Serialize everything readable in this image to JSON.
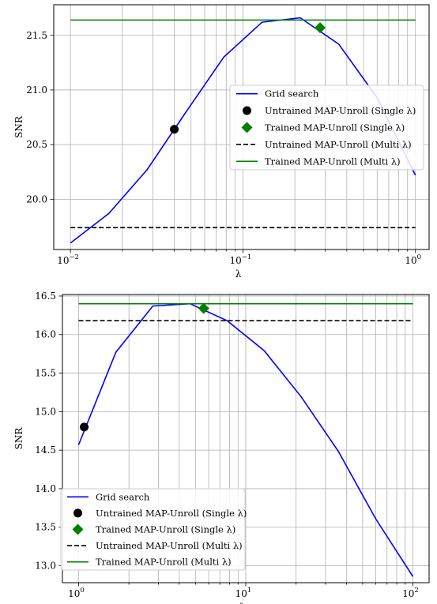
{
  "chart_data": [
    {
      "type": "line",
      "xscale": "log",
      "xlim": [
        0.008,
        1.2
      ],
      "ylim": [
        19.54,
        21.78
      ],
      "xlabel": "λ",
      "ylabel": "SNR",
      "grid": true,
      "legend_position": "center-right",
      "xticks": [
        {
          "value": 0.01,
          "base": "10",
          "exp": "−2"
        },
        {
          "value": 0.1,
          "base": "10",
          "exp": "−1"
        },
        {
          "value": 1,
          "base": "10",
          "exp": "0"
        }
      ],
      "yticks": [
        {
          "value": 20.0,
          "label": "20.0"
        },
        {
          "value": 20.5,
          "label": "20.5"
        },
        {
          "value": 21.0,
          "label": "21.0"
        },
        {
          "value": 21.5,
          "label": "21.5"
        }
      ],
      "grid_x": [
        0.02,
        0.03,
        0.04,
        0.05,
        0.06,
        0.07,
        0.08,
        0.09,
        0.2,
        0.3,
        0.4,
        0.5,
        0.6,
        0.7,
        0.8,
        0.9
      ],
      "series": [
        {
          "name": "Grid search",
          "kind": "line",
          "color": "#0000ff",
          "x": [
            0.01,
            0.0167,
            0.0278,
            0.0464,
            0.0774,
            0.129,
            0.215,
            0.359,
            0.599,
            1.0
          ],
          "y": [
            19.6,
            19.87,
            20.27,
            20.79,
            21.3,
            21.62,
            21.66,
            21.42,
            20.93,
            20.22
          ]
        },
        {
          "name": "Untrained MAP-Unroll (Single λ)",
          "kind": "marker",
          "marker": "circle",
          "color": "#000000",
          "x": [
            0.04
          ],
          "y": [
            20.64
          ]
        },
        {
          "name": "Trained MAP-Unroll (Single λ)",
          "kind": "marker",
          "marker": "diamond",
          "color": "#008000",
          "x": [
            0.28
          ],
          "y": [
            21.57
          ]
        },
        {
          "name": "Untrained MAP-Unroll (Multi λ)",
          "kind": "hline",
          "dash": true,
          "color": "#000000",
          "y": 19.74,
          "xrange": [
            0.01,
            1.0
          ]
        },
        {
          "name": "Trained MAP-Unroll (Multi λ)",
          "kind": "hline",
          "dash": false,
          "color": "#008000",
          "y": 21.64,
          "xrange": [
            0.01,
            1.0
          ]
        }
      ]
    },
    {
      "type": "line",
      "xscale": "log",
      "xlim": [
        0.8,
        125
      ],
      "ylim": [
        12.78,
        16.52
      ],
      "xlabel": "λ",
      "ylabel": "SNR",
      "grid": true,
      "legend_position": "lower-left",
      "xticks": [
        {
          "value": 1,
          "base": "10",
          "exp": "0"
        },
        {
          "value": 10,
          "base": "10",
          "exp": "1"
        },
        {
          "value": 100,
          "base": "10",
          "exp": "2"
        }
      ],
      "yticks": [
        {
          "value": 13.0,
          "label": "13.0"
        },
        {
          "value": 13.5,
          "label": "13.5"
        },
        {
          "value": 14.0,
          "label": "14.0"
        },
        {
          "value": 14.5,
          "label": "14.5"
        },
        {
          "value": 15.0,
          "label": "15.0"
        },
        {
          "value": 15.5,
          "label": "15.5"
        },
        {
          "value": 16.0,
          "label": "16.0"
        },
        {
          "value": 16.5,
          "label": "16.5"
        }
      ],
      "grid_x": [
        2,
        3,
        4,
        5,
        6,
        7,
        8,
        9,
        20,
        30,
        40,
        50,
        60,
        70,
        80,
        90
      ],
      "series": [
        {
          "name": "Grid search",
          "kind": "line",
          "color": "#0000ff",
          "x": [
            1.0,
            1.67,
            2.78,
            4.64,
            7.74,
            12.9,
            21.5,
            35.9,
            59.9,
            100
          ],
          "y": [
            14.57,
            15.77,
            16.37,
            16.4,
            16.18,
            15.79,
            15.19,
            14.48,
            13.61,
            12.86
          ]
        },
        {
          "name": "Untrained MAP-Unroll (Single λ)",
          "kind": "marker",
          "marker": "circle",
          "color": "#000000",
          "x": [
            1.08
          ],
          "y": [
            14.8
          ]
        },
        {
          "name": "Trained MAP-Unroll (Single λ)",
          "kind": "marker",
          "marker": "diamond",
          "color": "#008000",
          "x": [
            5.6
          ],
          "y": [
            16.34
          ]
        },
        {
          "name": "Untrained MAP-Unroll (Multi λ)",
          "kind": "hline",
          "dash": true,
          "color": "#000000",
          "y": 16.18,
          "xrange": [
            1.0,
            100
          ]
        },
        {
          "name": "Trained MAP-Unroll (Multi λ)",
          "kind": "hline",
          "dash": false,
          "color": "#008000",
          "y": 16.4,
          "xrange": [
            1.0,
            100
          ]
        }
      ]
    }
  ]
}
